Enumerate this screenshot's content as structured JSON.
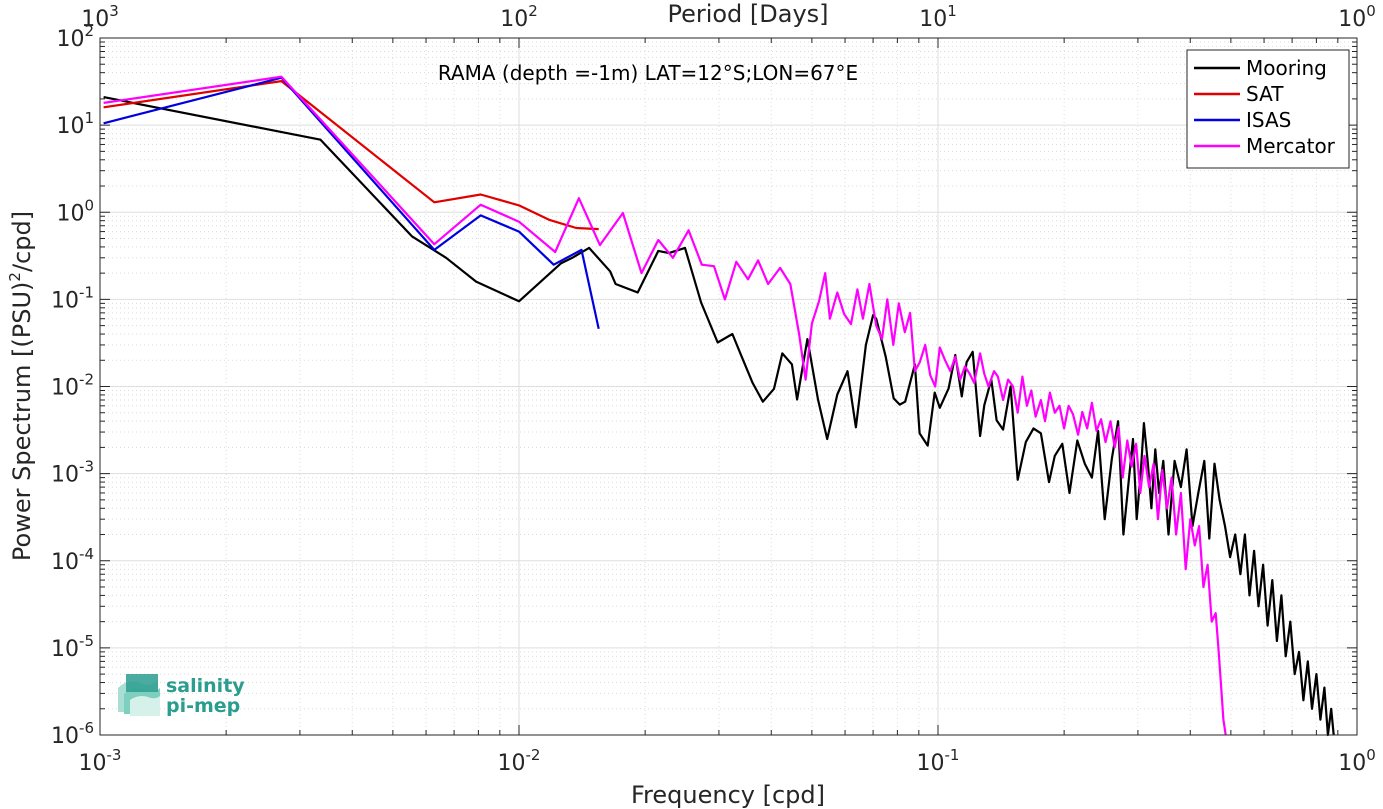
{
  "chart_data": {
    "type": "line",
    "title": "RAMA (depth =-1m) LAT=12°S;LON=67°E",
    "xlabel": "Frequency [cpd]",
    "ylabel_main": "Power Spectrum [(PSU)",
    "ylabel_sup": "2",
    "ylabel_tail": "/cpd]",
    "top_xlabel": "Period [Days]",
    "xscale": "log",
    "yscale": "log",
    "xlim": [
      0.001,
      1
    ],
    "ylim": [
      1e-06,
      100
    ],
    "grid": true,
    "legend_position": "top-right",
    "x_tick_labels": [
      {
        "base": "10",
        "exp": "-3"
      },
      {
        "base": "10",
        "exp": "-2"
      },
      {
        "base": "10",
        "exp": "-1"
      },
      {
        "base": "10",
        "exp": "0"
      }
    ],
    "top_tick_labels": [
      {
        "base": "10",
        "exp": "3"
      },
      {
        "base": "10",
        "exp": "2"
      },
      {
        "base": "10",
        "exp": "1"
      },
      {
        "base": "10",
        "exp": "0"
      }
    ],
    "y_tick_labels": [
      {
        "base": "10",
        "exp": "-6"
      },
      {
        "base": "10",
        "exp": "-5"
      },
      {
        "base": "10",
        "exp": "-4"
      },
      {
        "base": "10",
        "exp": "-3"
      },
      {
        "base": "10",
        "exp": "-2"
      },
      {
        "base": "10",
        "exp": "-1"
      },
      {
        "base": "10",
        "exp": "0"
      },
      {
        "base": "10",
        "exp": "1"
      },
      {
        "base": "10",
        "exp": "2"
      }
    ],
    "series": [
      {
        "name": "Mooring",
        "color": "#000000",
        "points": [
          [
            0.00102,
            21
          ],
          [
            0.00336,
            6.8
          ],
          [
            0.00555,
            0.53
          ],
          [
            0.0067,
            0.3
          ],
          [
            0.0079,
            0.16
          ],
          [
            0.01,
            0.095
          ],
          [
            0.0126,
            0.26
          ],
          [
            0.0134,
            0.3
          ],
          [
            0.0147,
            0.39
          ],
          [
            0.0165,
            0.21
          ],
          [
            0.017,
            0.15
          ],
          [
            0.0192,
            0.12
          ],
          [
            0.0215,
            0.36
          ],
          [
            0.0228,
            0.34
          ],
          [
            0.0249,
            0.39
          ],
          [
            0.0272,
            0.092
          ],
          [
            0.0298,
            0.032
          ],
          [
            0.0323,
            0.04
          ],
          [
            0.034,
            0.022
          ],
          [
            0.0361,
            0.011
          ],
          [
            0.0382,
            0.0067
          ],
          [
            0.0406,
            0.0094
          ],
          [
            0.0425,
            0.024
          ],
          [
            0.0448,
            0.018
          ],
          [
            0.0461,
            0.0071
          ],
          [
            0.0488,
            0.035
          ],
          [
            0.0517,
            0.0071
          ],
          [
            0.0544,
            0.0025
          ],
          [
            0.0575,
            0.0081
          ],
          [
            0.0608,
            0.015
          ],
          [
            0.0637,
            0.0034
          ],
          [
            0.0673,
            0.03
          ],
          [
            0.07,
            0.066
          ],
          [
            0.0712,
            0.06
          ],
          [
            0.075,
            0.022
          ],
          [
            0.0784,
            0.0073
          ],
          [
            0.081,
            0.0062
          ],
          [
            0.0835,
            0.0067
          ],
          [
            0.0881,
            0.018
          ],
          [
            0.0904,
            0.0029
          ],
          [
            0.0945,
            0.0021
          ],
          [
            0.0982,
            0.0085
          ],
          [
            0.101,
            0.0057
          ],
          [
            0.106,
            0.0095
          ],
          [
            0.11,
            0.023
          ],
          [
            0.114,
            0.0077
          ],
          [
            0.117,
            0.019
          ],
          [
            0.121,
            0.025
          ],
          [
            0.126,
            0.0027
          ],
          [
            0.129,
            0.0061
          ],
          [
            0.134,
            0.012
          ],
          [
            0.138,
            0.0041
          ],
          [
            0.143,
            0.0032
          ],
          [
            0.149,
            0.01
          ],
          [
            0.155,
            0.00085
          ],
          [
            0.162,
            0.0023
          ],
          [
            0.169,
            0.0033
          ],
          [
            0.176,
            0.0029
          ],
          [
            0.184,
            0.0008
          ],
          [
            0.19,
            0.0016
          ],
          [
            0.198,
            0.0022
          ],
          [
            0.206,
            0.0006
          ],
          [
            0.215,
            0.0024
          ],
          [
            0.224,
            0.0013
          ],
          [
            0.233,
            0.0009
          ],
          [
            0.241,
            0.0031
          ],
          [
            0.25,
            0.0003
          ],
          [
            0.26,
            0.0015
          ],
          [
            0.269,
            0.004
          ],
          [
            0.277,
            0.0002
          ],
          [
            0.285,
            0.0008
          ],
          [
            0.292,
            0.0025
          ],
          [
            0.298,
            0.0003
          ],
          [
            0.305,
            0.0011
          ],
          [
            0.31,
            0.0038
          ],
          [
            0.317,
            0.0013
          ],
          [
            0.323,
            0.0004
          ],
          [
            0.33,
            0.0019
          ],
          [
            0.337,
            0.0006
          ],
          [
            0.345,
            0.0014
          ],
          [
            0.355,
            0.0002
          ],
          [
            0.367,
            0.0014
          ],
          [
            0.38,
            0.0007
          ],
          [
            0.392,
            0.0019
          ],
          [
            0.405,
            0.00025
          ],
          [
            0.418,
            0.0006
          ],
          [
            0.432,
            0.0014
          ],
          [
            0.444,
            0.00018
          ],
          [
            0.457,
            0.0013
          ],
          [
            0.47,
            0.0005
          ],
          [
            0.484,
            0.00025
          ],
          [
            0.498,
            0.00011
          ],
          [
            0.512,
            0.0002
          ],
          [
            0.527,
            7e-05
          ],
          [
            0.54,
            0.0002
          ],
          [
            0.554,
            4e-05
          ],
          [
            0.568,
            0.00013
          ],
          [
            0.582,
            3e-05
          ],
          [
            0.597,
            9e-05
          ],
          [
            0.612,
            1.8e-05
          ],
          [
            0.628,
            6e-05
          ],
          [
            0.644,
            1.2e-05
          ],
          [
            0.66,
            4e-05
          ],
          [
            0.676,
            8e-06
          ],
          [
            0.693,
            2e-05
          ],
          [
            0.71,
            5e-06
          ],
          [
            0.727,
            9e-06
          ],
          [
            0.745,
            2.5e-06
          ],
          [
            0.763,
            7e-06
          ],
          [
            0.781,
            2e-06
          ],
          [
            0.8,
            5e-06
          ],
          [
            0.818,
            1.5e-06
          ],
          [
            0.836,
            3.5e-06
          ],
          [
            0.852,
            1e-06
          ],
          [
            0.868,
            2e-06
          ],
          [
            0.88,
            1e-06
          ]
        ]
      },
      {
        "name": "SAT",
        "color": "#e00000",
        "points": [
          [
            0.00102,
            16
          ],
          [
            0.00271,
            32
          ],
          [
            0.00628,
            1.3
          ],
          [
            0.0081,
            1.6
          ],
          [
            0.01,
            1.2
          ],
          [
            0.0118,
            0.82
          ],
          [
            0.0137,
            0.66
          ],
          [
            0.0155,
            0.64
          ]
        ]
      },
      {
        "name": "ISAS",
        "color": "#0000e0",
        "points": [
          [
            0.00102,
            10.5
          ],
          [
            0.00271,
            35
          ],
          [
            0.00628,
            0.37
          ],
          [
            0.0081,
            0.92
          ],
          [
            0.01,
            0.6
          ],
          [
            0.0121,
            0.25
          ],
          [
            0.0141,
            0.37
          ],
          [
            0.0155,
            0.046
          ]
        ]
      },
      {
        "name": "Mercator",
        "color": "#ff00ff",
        "points": [
          [
            0.00102,
            18
          ],
          [
            0.00271,
            36
          ],
          [
            0.00628,
            0.43
          ],
          [
            0.0081,
            1.22
          ],
          [
            0.01,
            0.78
          ],
          [
            0.0122,
            0.35
          ],
          [
            0.0139,
            1.45
          ],
          [
            0.0156,
            0.42
          ],
          [
            0.0177,
            0.98
          ],
          [
            0.0196,
            0.2
          ],
          [
            0.0215,
            0.48
          ],
          [
            0.0233,
            0.3
          ],
          [
            0.0254,
            0.62
          ],
          [
            0.0273,
            0.25
          ],
          [
            0.0292,
            0.24
          ],
          [
            0.031,
            0.1
          ],
          [
            0.033,
            0.27
          ],
          [
            0.0352,
            0.17
          ],
          [
            0.0372,
            0.28
          ],
          [
            0.0393,
            0.15
          ],
          [
            0.042,
            0.23
          ],
          [
            0.0444,
            0.15
          ],
          [
            0.0466,
            0.04
          ],
          [
            0.0483,
            0.012
          ],
          [
            0.05,
            0.053
          ],
          [
            0.052,
            0.095
          ],
          [
            0.0538,
            0.2
          ],
          [
            0.0552,
            0.06
          ],
          [
            0.0575,
            0.12
          ],
          [
            0.0597,
            0.068
          ],
          [
            0.062,
            0.052
          ],
          [
            0.0642,
            0.13
          ],
          [
            0.0662,
            0.06
          ],
          [
            0.0686,
            0.15
          ],
          [
            0.0712,
            0.05
          ],
          [
            0.0735,
            0.035
          ],
          [
            0.0757,
            0.1
          ],
          [
            0.0782,
            0.03
          ],
          [
            0.0806,
            0.09
          ],
          [
            0.0833,
            0.042
          ],
          [
            0.0858,
            0.07
          ],
          [
            0.0881,
            0.015
          ],
          [
            0.0905,
            0.019
          ],
          [
            0.0932,
            0.03
          ],
          [
            0.0958,
            0.0135
          ],
          [
            0.0985,
            0.01
          ],
          [
            0.101,
            0.028
          ],
          [
            0.104,
            0.02
          ],
          [
            0.107,
            0.015
          ],
          [
            0.11,
            0.022
          ],
          [
            0.113,
            0.012
          ],
          [
            0.116,
            0.017
          ],
          [
            0.119,
            0.014
          ],
          [
            0.122,
            0.011
          ],
          [
            0.126,
            0.024
          ],
          [
            0.129,
            0.014
          ],
          [
            0.132,
            0.01
          ],
          [
            0.136,
            0.015
          ],
          [
            0.139,
            0.013
          ],
          [
            0.143,
            0.007
          ],
          [
            0.147,
            0.012
          ],
          [
            0.151,
            0.01
          ],
          [
            0.155,
            0.005
          ],
          [
            0.159,
            0.013
          ],
          [
            0.163,
            0.006
          ],
          [
            0.167,
            0.009
          ],
          [
            0.171,
            0.0045
          ],
          [
            0.176,
            0.007
          ],
          [
            0.18,
            0.004
          ],
          [
            0.185,
            0.0085
          ],
          [
            0.19,
            0.005
          ],
          [
            0.195,
            0.006
          ],
          [
            0.2,
            0.0033
          ],
          [
            0.205,
            0.006
          ],
          [
            0.21,
            0.0048
          ],
          [
            0.216,
            0.0028
          ],
          [
            0.221,
            0.0051
          ],
          [
            0.227,
            0.0033
          ],
          [
            0.233,
            0.0065
          ],
          [
            0.239,
            0.0031
          ],
          [
            0.245,
            0.0042
          ],
          [
            0.251,
            0.0023
          ],
          [
            0.258,
            0.004
          ],
          [
            0.264,
            0.002
          ],
          [
            0.27,
            0.0034
          ],
          [
            0.276,
            0.0009
          ],
          [
            0.283,
            0.0024
          ],
          [
            0.29,
            0.0012
          ],
          [
            0.297,
            0.0022
          ],
          [
            0.304,
            0.0006
          ],
          [
            0.311,
            0.0016
          ],
          [
            0.319,
            0.0007
          ],
          [
            0.327,
            0.0013
          ],
          [
            0.335,
            0.0003
          ],
          [
            0.343,
            0.0011
          ],
          [
            0.352,
            0.0004
          ],
          [
            0.361,
            0.0009
          ],
          [
            0.37,
            0.0002
          ],
          [
            0.38,
            0.0006
          ],
          [
            0.39,
            8e-05
          ],
          [
            0.4,
            0.0003
          ],
          [
            0.41,
            0.00015
          ],
          [
            0.42,
            0.00025
          ],
          [
            0.43,
            5e-05
          ],
          [
            0.44,
            9e-05
          ],
          [
            0.45,
            2e-05
          ],
          [
            0.46,
            2.5e-05
          ],
          [
            0.467,
            1e-05
          ],
          [
            0.474,
            3.5e-06
          ],
          [
            0.48,
            1.5e-06
          ],
          [
            0.486,
            1e-06
          ]
        ]
      }
    ],
    "logo": {
      "line1": "salinity",
      "line2": "pi-mep"
    }
  }
}
